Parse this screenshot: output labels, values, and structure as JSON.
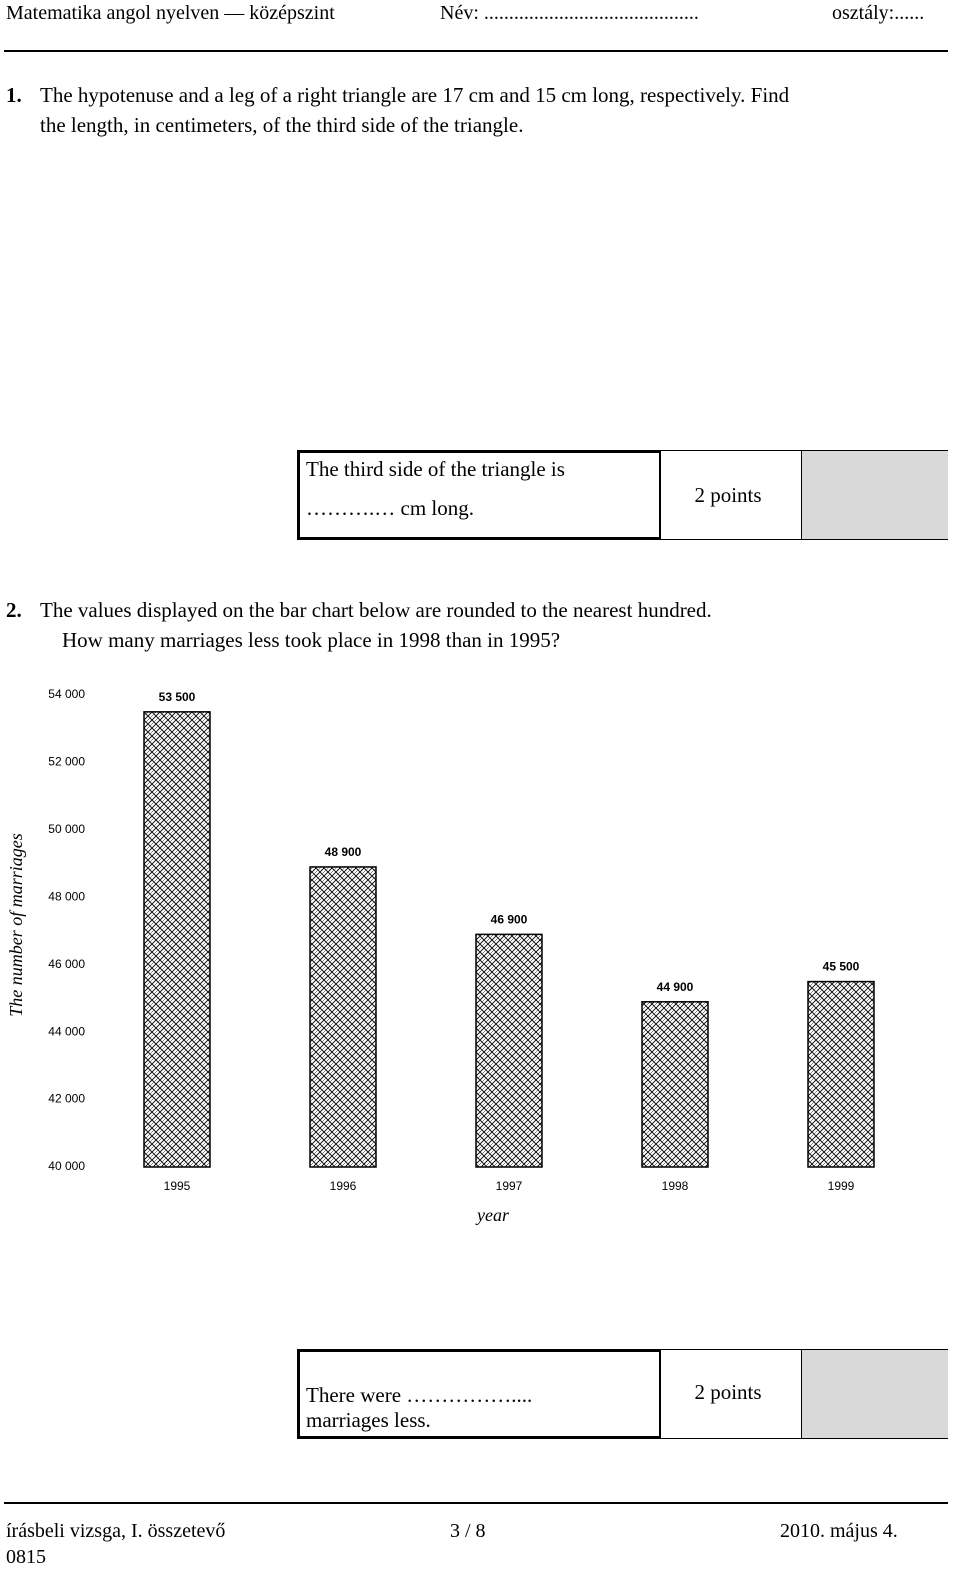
{
  "header": {
    "left": "Matematika angol nyelven — középszint",
    "name": "Név: ...........................................",
    "class": "osztály:......"
  },
  "problem1": {
    "number": "1.",
    "text_lines": [
      "The hypotenuse and a leg of a right triangle are 17 cm and 15 cm long, respectively. Find",
      "the length, in centimeters, of the third side of the triangle."
    ],
    "answer_lines": [
      "The third side of the triangle is",
      "……….… cm long."
    ],
    "points": "2 points"
  },
  "problem2": {
    "number": "2.",
    "text_lines": [
      "The values displayed on the bar chart below are rounded to the nearest hundred.",
      "How many marriages less took place in 1998 than in 1995?"
    ],
    "answer_lines": [
      "There were ……………....",
      "marriages less."
    ],
    "points": "2 points"
  },
  "chart_data": {
    "type": "bar",
    "x_label": "year",
    "y_label": "The number of marriages",
    "categories": [
      "1995",
      "1996",
      "1997",
      "1998",
      "1999"
    ],
    "values": [
      53500,
      48900,
      46900,
      44900,
      45500
    ],
    "value_labels": [
      "53 500",
      "48 900",
      "46 900",
      "44 900",
      "45 500"
    ],
    "ylim": [
      40000,
      54000
    ],
    "yticks": [
      {
        "value": 40000,
        "label": "40 000"
      },
      {
        "value": 42000,
        "label": "42 000"
      },
      {
        "value": 44000,
        "label": "44 000"
      },
      {
        "value": 46000,
        "label": "46 000"
      },
      {
        "value": 48000,
        "label": "48 000"
      },
      {
        "value": 50000,
        "label": "50 000"
      },
      {
        "value": 52000,
        "label": "52 000"
      },
      {
        "value": 54000,
        "label": "54 000"
      }
    ]
  },
  "footer": {
    "left": "írásbeli vizsga, I. összetevő",
    "center": "3 / 8",
    "right": "2010. május 4.",
    "code": "0815"
  }
}
